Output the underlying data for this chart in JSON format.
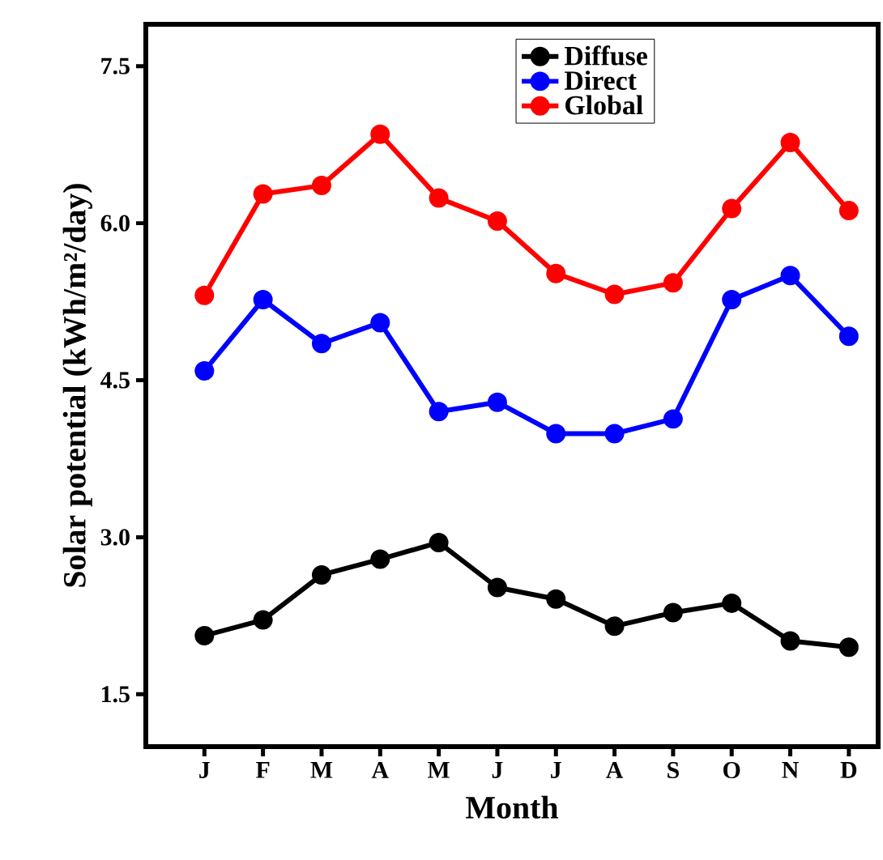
{
  "chart_data": {
    "type": "line",
    "xlabel": "Month",
    "ylabel": "Solar potential (kWh/m²/day)",
    "categories": [
      "J",
      "F",
      "M",
      "A",
      "M",
      "J",
      "J",
      "A",
      "S",
      "O",
      "N",
      "D"
    ],
    "series": [
      {
        "name": "Diffuse",
        "color": "#000000",
        "values": [
          2.06,
          2.21,
          2.64,
          2.79,
          2.95,
          2.52,
          2.41,
          2.15,
          2.28,
          2.37,
          2.01,
          1.95
        ]
      },
      {
        "name": "Direct",
        "color": "#0000ff",
        "values": [
          4.59,
          5.27,
          4.85,
          5.05,
          4.2,
          4.29,
          3.99,
          3.99,
          4.13,
          5.27,
          5.5,
          4.92
        ]
      },
      {
        "name": "Global",
        "color": "#ff0000",
        "values": [
          5.31,
          6.28,
          6.36,
          6.85,
          6.24,
          6.02,
          5.52,
          5.32,
          5.43,
          6.14,
          6.77,
          6.12
        ]
      }
    ],
    "ylim": [
      1.0,
      7.9
    ],
    "yticks": [
      1.5,
      {
        "value": 3,
        "label": "3.0"
      },
      4.5,
      {
        "value": 6,
        "label": "6.0"
      },
      7.5
    ],
    "marker": "circle",
    "line_style": "solid",
    "legend": "top",
    "grid": false
  }
}
